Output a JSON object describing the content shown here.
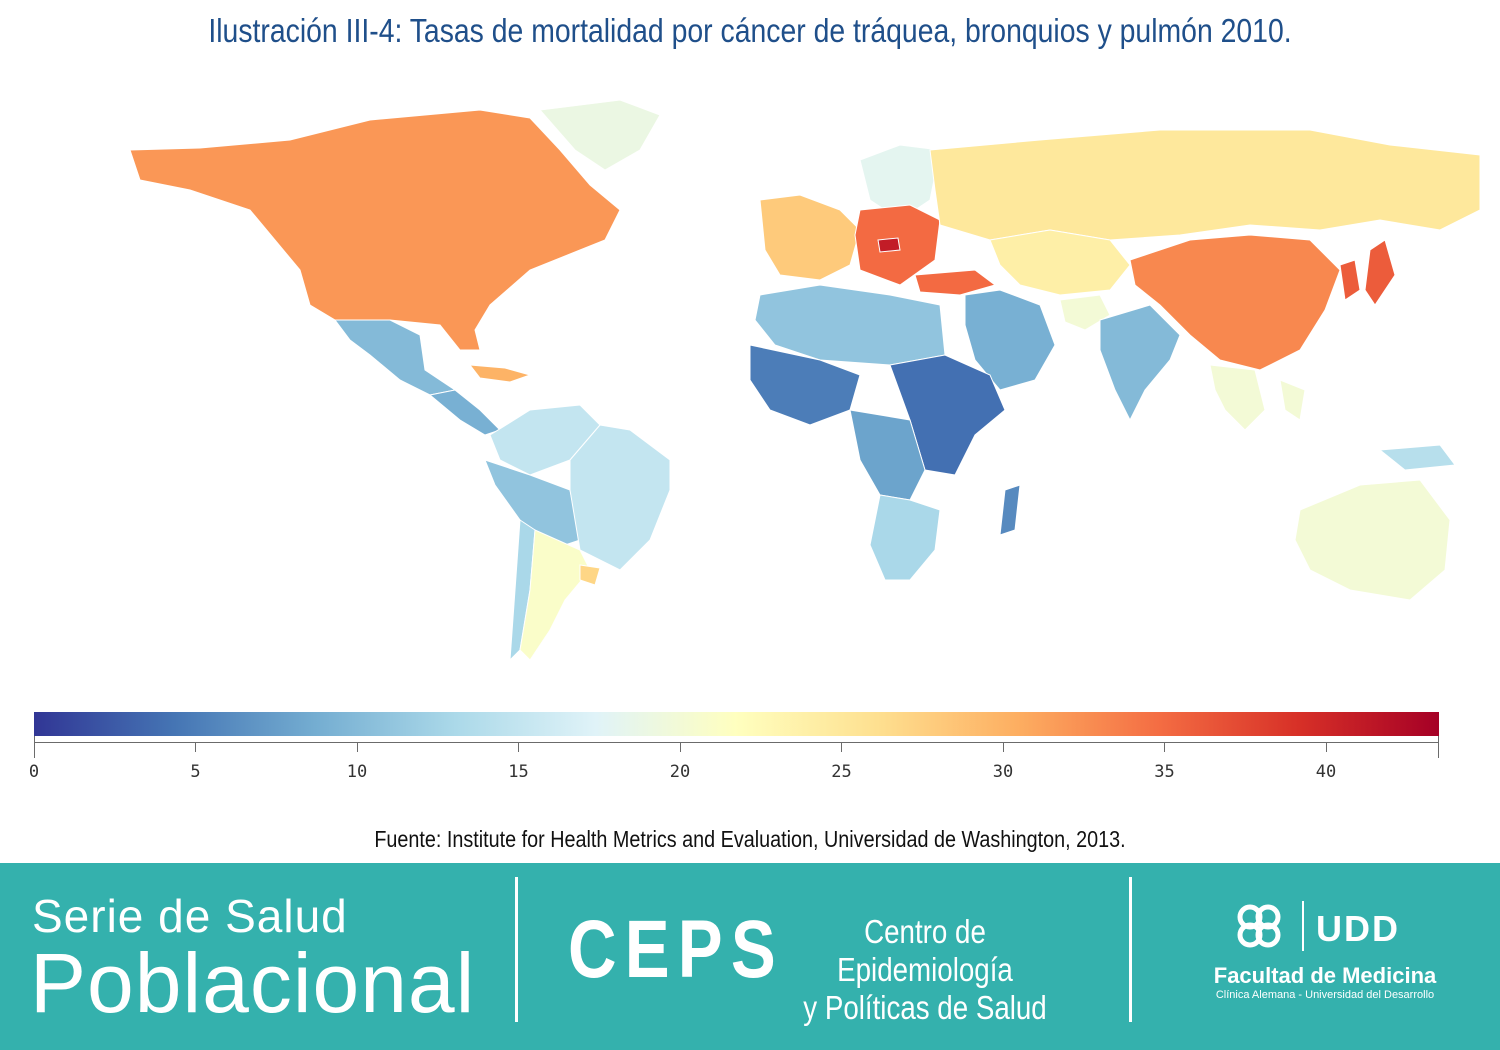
{
  "title": "Ilustración III-4: Tasas de mortalidad por cáncer de tráquea, bronquios y pulmón 2010.",
  "colors": {
    "title": "#1f4f8a",
    "footer_bg": "#34b1ad",
    "scale": [
      "#313695",
      "#4575b4",
      "#74add1",
      "#abd9e9",
      "#e0f3f8",
      "#ffffbf",
      "#fee090",
      "#fdae61",
      "#f46d43",
      "#d73027",
      "#a50026"
    ]
  },
  "map": {
    "regions": [
      {
        "name": "North America (USA, Canada)",
        "value": 32
      },
      {
        "name": "Mexico",
        "value": 10
      },
      {
        "name": "Central America",
        "value": 9
      },
      {
        "name": "Caribbean",
        "value": 30
      },
      {
        "name": "Colombia / Venezuela",
        "value": 15
      },
      {
        "name": "Peru / Bolivia",
        "value": 11
      },
      {
        "name": "Brazil",
        "value": 15
      },
      {
        "name": "Chile",
        "value": 13
      },
      {
        "name": "Argentina",
        "value": 21
      },
      {
        "name": "Uruguay",
        "value": 27
      },
      {
        "name": "Greenland",
        "value": 19
      },
      {
        "name": "Western Europe",
        "value": 28
      },
      {
        "name": "Scandinavia",
        "value": 18
      },
      {
        "name": "Eastern Europe",
        "value": 35
      },
      {
        "name": "Hungary",
        "value": 41
      },
      {
        "name": "Russia",
        "value": 25
      },
      {
        "name": "Kazakhstan / Central Asia",
        "value": 24
      },
      {
        "name": "Turkey",
        "value": 35
      },
      {
        "name": "Middle East",
        "value": 9
      },
      {
        "name": "Afghanistan",
        "value": 20
      },
      {
        "name": "India",
        "value": 10
      },
      {
        "name": "China",
        "value": 33
      },
      {
        "name": "Korea / Japan",
        "value": 36
      },
      {
        "name": "Southeast Asia",
        "value": 20
      },
      {
        "name": "North Africa",
        "value": 11
      },
      {
        "name": "West Africa",
        "value": 5
      },
      {
        "name": "East Africa",
        "value": 4
      },
      {
        "name": "Central Africa",
        "value": 8
      },
      {
        "name": "Southern Africa",
        "value": 13
      },
      {
        "name": "Madagascar",
        "value": 6
      },
      {
        "name": "Australia",
        "value": 20
      },
      {
        "name": "New Guinea",
        "value": 14
      }
    ]
  },
  "colorbar": {
    "min": 0,
    "max": 43.5,
    "ticks": [
      "0",
      "5",
      "10",
      "15",
      "20",
      "25",
      "30",
      "35",
      "40"
    ]
  },
  "source": "Fuente: Institute for Health Metrics and Evaluation, Universidad de Washington, 2013.",
  "footer": {
    "serie_line1": "Serie de Salud",
    "serie_line2": "Poblacional",
    "ceps": "CEPS",
    "ceps_sub_line1": "Centro de Epidemiología",
    "ceps_sub_line2": "y Políticas de Salud",
    "udd_text": "UDD",
    "facultad": "Facultad de Medicina",
    "facultad_sub": "Clínica Alemana - Universidad del Desarrollo"
  }
}
